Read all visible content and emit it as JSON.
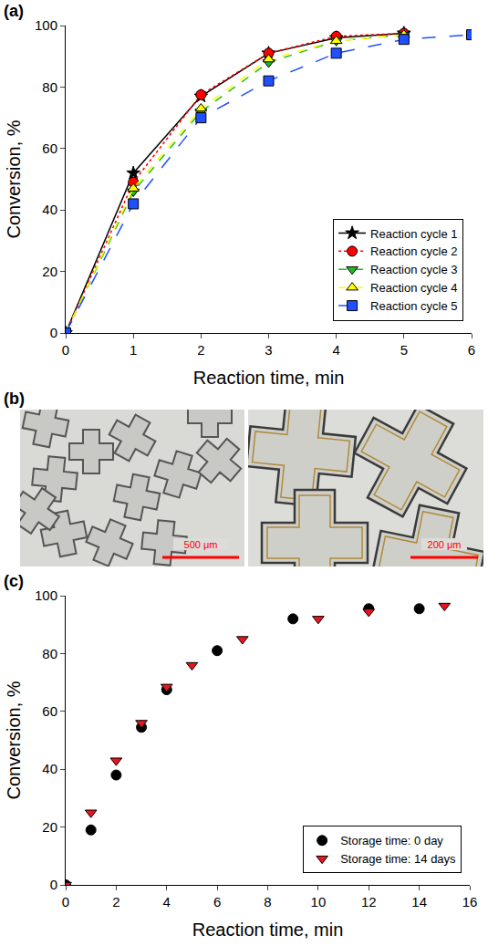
{
  "chart_data": [
    {
      "panel": "(a)",
      "type": "line",
      "x": [
        0,
        1,
        2,
        3,
        4,
        5,
        6
      ],
      "xlabel": "Reaction time, min",
      "ylabel": "Conversion, %",
      "xlim": [
        0,
        6
      ],
      "xticks": [
        0,
        1,
        2,
        3,
        4,
        5,
        6
      ],
      "ylim": [
        0,
        100
      ],
      "yticks": [
        0,
        20,
        40,
        60,
        80,
        100
      ],
      "grid": false,
      "legend": "lower right",
      "series": [
        {
          "name": "Reaction cycle 1",
          "color": "#000000",
          "marker": "star",
          "line_style": "solid",
          "values": [
            0,
            52,
            77,
            91,
            96,
            97.5,
            null
          ]
        },
        {
          "name": "Reaction cycle 2",
          "color": "#ff0000",
          "marker": "circle",
          "line_style": "dot",
          "values": [
            0,
            49,
            77.5,
            91,
            96.5,
            97.5,
            null
          ]
        },
        {
          "name": "Reaction cycle 3",
          "color": "#22bb22",
          "marker": "triangle-down",
          "line_style": "dash",
          "values": [
            0,
            46,
            72,
            88,
            95,
            97,
            null
          ]
        },
        {
          "name": "Reaction cycle 4",
          "color": "#ffff00",
          "marker": "triangle-up",
          "line_style": "dash",
          "values": [
            0,
            47,
            73,
            89,
            95,
            97,
            null
          ]
        },
        {
          "name": "Reaction cycle 5",
          "color": "#1f4fff",
          "marker": "square",
          "line_style": "longdash",
          "values": [
            0,
            42,
            70,
            82,
            91,
            95.5,
            97
          ]
        }
      ]
    },
    {
      "panel": "(c)",
      "type": "scatter",
      "xlabel": "Reaction time, min",
      "ylabel": "Conversion, %",
      "xlim": [
        0,
        16
      ],
      "xticks": [
        0,
        2,
        4,
        6,
        8,
        10,
        12,
        14,
        16
      ],
      "ylim": [
        0,
        100
      ],
      "yticks": [
        0,
        20,
        40,
        60,
        80,
        100
      ],
      "grid": false,
      "legend": "lower right",
      "series": [
        {
          "name": "Storage time: 0 day",
          "color": "#000000",
          "marker": "circle",
          "x": [
            0,
            1,
            2,
            3,
            4,
            6,
            9,
            12,
            14
          ],
          "values": [
            0,
            19,
            38,
            54.5,
            67.5,
            81,
            92,
            95.5,
            95.5
          ]
        },
        {
          "name": "Storage time: 14 days",
          "color": "#e8141e",
          "marker": "triangle-down",
          "x": [
            0,
            1,
            2,
            3,
            4,
            5,
            7,
            10,
            12,
            15
          ],
          "values": [
            0,
            25,
            43,
            56,
            68.5,
            76,
            85,
            92,
            94.5,
            96.5
          ]
        }
      ]
    }
  ],
  "images": {
    "panel": "(b)",
    "scale_bars": [
      "500 μm",
      "200 μm"
    ]
  }
}
